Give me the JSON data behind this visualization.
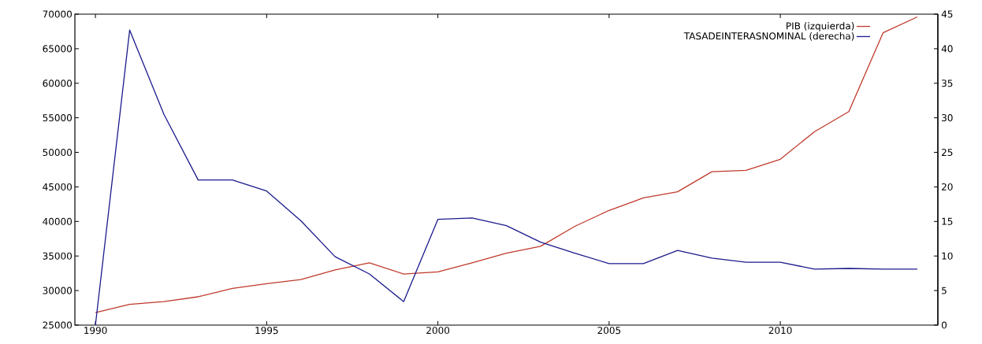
{
  "chart_data": {
    "type": "line",
    "x": [
      1990,
      1991,
      1992,
      1993,
      1994,
      1995,
      1996,
      1997,
      1998,
      1999,
      2000,
      2001,
      2002,
      2003,
      2004,
      2005,
      2006,
      2007,
      2008,
      2009,
      2010,
      2011,
      2012,
      2013,
      2014
    ],
    "series": [
      {
        "name": "PIB (izquierda)",
        "color": "#c0392b",
        "values": [
          26800,
          28000,
          28400,
          29100,
          30300,
          31000,
          31600,
          33000,
          34000,
          32400,
          32700,
          34000,
          35400,
          36400,
          39300,
          41600,
          43400,
          44300,
          47200,
          47400,
          49000,
          53000,
          55900,
          67300,
          69600
        ]
      },
      {
        "name": "TASADEINTERASNOMINAL (derecha)",
        "color": "#1a1a8c",
        "axis": "y2",
        "values": [
          0,
          42.7,
          30.5,
          21.0,
          21.0,
          19.4,
          15.1,
          9.9,
          7.4,
          3.4,
          15.3,
          15.5,
          14.4,
          12.0,
          10.4,
          8.9,
          8.9,
          10.8,
          9.7,
          9.1,
          9.1,
          8.1,
          8.2,
          8.1,
          8.1
        ]
      }
    ],
    "xlim": [
      1989.4,
      2014.6
    ],
    "xticks": [
      1990,
      1995,
      2000,
      2005,
      2010
    ],
    "ylim": [
      25000,
      70000
    ],
    "yticks": [
      25000,
      30000,
      35000,
      40000,
      45000,
      50000,
      55000,
      60000,
      65000,
      70000
    ],
    "y2lim": [
      0,
      45
    ],
    "y2ticks": [
      0,
      5,
      10,
      15,
      20,
      25,
      30,
      35,
      40,
      45
    ],
    "grid": false,
    "legend": "top right",
    "marker": "none",
    "line_style": "solid"
  }
}
